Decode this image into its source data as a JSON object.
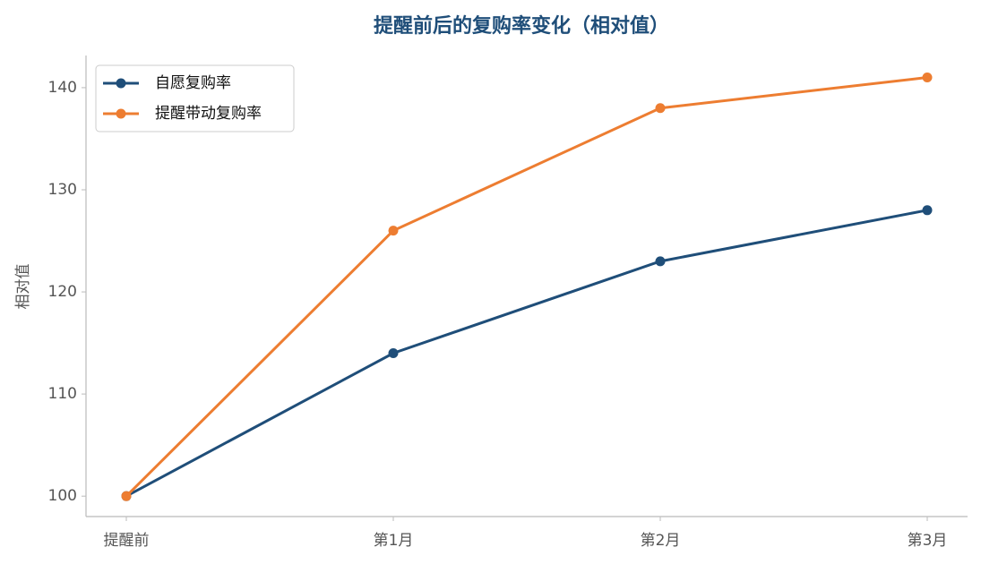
{
  "chart_data": {
    "type": "line",
    "title": "提醒前后的复购率变化（相对值）",
    "y_label": "相对值",
    "categories": [
      "提醒前",
      "第1月",
      "第2月",
      "第3月"
    ],
    "series": [
      {
        "name": "自愿复购率",
        "color": "#1f4e79",
        "values": [
          100,
          114,
          123,
          128
        ]
      },
      {
        "name": "提醒带动复购率",
        "color": "#ed7d31",
        "values": [
          100,
          126,
          138,
          141
        ]
      }
    ],
    "ylim": [
      98,
      143.15
    ],
    "yticks": [
      100,
      110,
      120,
      130,
      140
    ],
    "grid": false,
    "legend": "upper left"
  }
}
